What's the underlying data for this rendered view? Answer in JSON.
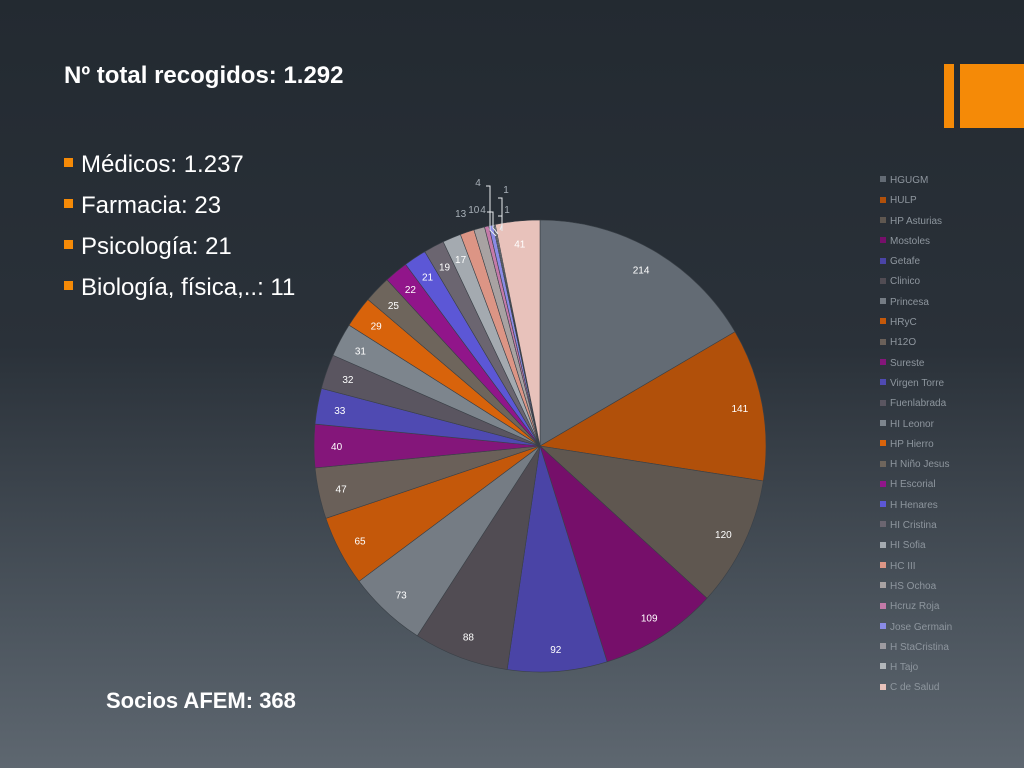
{
  "title": "Nº total recogidos: 1.292",
  "bullets": [
    "Médicos: 1.237",
    "Farmacia: 23",
    "Psicología: 21",
    "Biología, física,..: 11"
  ],
  "footer": "Socios AFEM: 368",
  "colors": {
    "accent": "#f58a07",
    "background": "#2a3139"
  },
  "chart_data": {
    "type": "pie",
    "title": "",
    "legend_position": "right",
    "start_angle_deg": 0,
    "direction": "clockwise",
    "categories": [
      "HGUGM",
      "HULP",
      "HP Asturias",
      "Mostoles",
      "Getafe",
      "Clinico",
      "Princesa",
      "HRyC",
      "H12O",
      "Sureste",
      "Virgen Torre",
      "Fuenlabrada",
      "HI Leonor",
      "HP Hierro",
      "H Niño Jesus",
      "H Escorial",
      "H Henares",
      "HI Cristina",
      "HI Sofia",
      "HC III",
      "HS Ochoa",
      "Hcruz Roja",
      "Jose Germain",
      "H StaCristina",
      "H Tajo",
      "C de Salud"
    ],
    "values": [
      214,
      141,
      120,
      109,
      92,
      88,
      73,
      65,
      47,
      40,
      33,
      32,
      31,
      29,
      25,
      22,
      21,
      19,
      17,
      13,
      10,
      4,
      4,
      1,
      1,
      41
    ],
    "colors": [
      "#636b74",
      "#b1500a",
      "#5f5750",
      "#760f6a",
      "#4a44a6",
      "#514c53",
      "#757c84",
      "#c4580a",
      "#6a6059",
      "#84167a",
      "#4f4ab2",
      "#5a5560",
      "#7d858d",
      "#d8630b",
      "#6e655c",
      "#91158a",
      "#5c57d6",
      "#6b6570",
      "#a4aab0",
      "#dc9585",
      "#a8a2a2",
      "#c47aa8",
      "#8a8be6",
      "#9d9ba0",
      "#b2b6ba",
      "#e8c2bb"
    ]
  }
}
